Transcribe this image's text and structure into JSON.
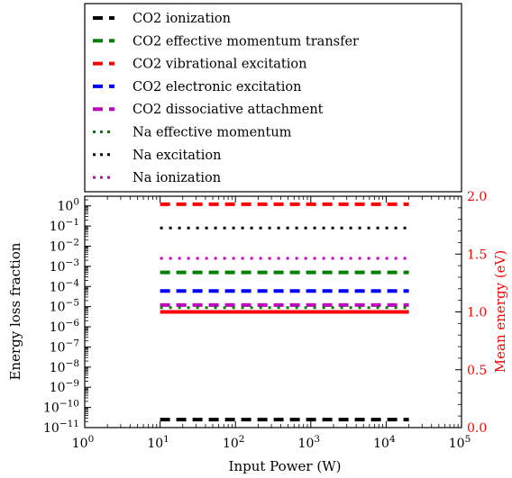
{
  "chart_data": {
    "type": "line",
    "xlabel": "Input Power (W)",
    "ylabel_left": "Energy loss fraction",
    "ylabel_right": "Mean energy (eV)",
    "x_scale": "log",
    "y_left_scale": "log",
    "xlim": [
      1,
      100000
    ],
    "ylim_left": [
      1e-11,
      3
    ],
    "ylim_right": [
      0.0,
      2.0
    ],
    "x_ticks": [
      "10^0",
      "10^1",
      "10^2",
      "10^3",
      "10^4",
      "10^5"
    ],
    "y_left_ticks": [
      "10^-11",
      "10^-10",
      "10^-9",
      "10^-8",
      "10^-7",
      "10^-6",
      "10^-5",
      "10^-4",
      "10^-3",
      "10^-2",
      "10^-1",
      "10^0"
    ],
    "y_right_ticks": [
      "0.0",
      "0.5",
      "1.0",
      "1.5",
      "2.0"
    ],
    "grid": false,
    "legend_position": "top",
    "x": [
      10,
      20000
    ],
    "series": [
      {
        "name": "CO2 ionization",
        "axis": "left",
        "style": "dashed",
        "color": "#000000",
        "values": [
          2.5e-11,
          2.5e-11
        ]
      },
      {
        "name": "CO2 effective momentum transfer",
        "axis": "left",
        "style": "dashed",
        "color": "#008000",
        "values": [
          0.0005,
          0.0005
        ]
      },
      {
        "name": "CO2 vibrational excitation",
        "axis": "left",
        "style": "dashed",
        "color": "#ff0000",
        "values": [
          1.2,
          1.2
        ]
      },
      {
        "name": "CO2 electronic excitation",
        "axis": "left",
        "style": "dashed",
        "color": "#0000ff",
        "values": [
          6e-05,
          6e-05
        ]
      },
      {
        "name": "CO2 dissociative attachment",
        "axis": "left",
        "style": "dashed",
        "color": "#bf00bf",
        "values": [
          1.2e-05,
          1.2e-05
        ]
      },
      {
        "name": "Na effective momentum",
        "axis": "left",
        "style": "dotted",
        "color": "#008000",
        "values": [
          9e-06,
          9e-06
        ]
      },
      {
        "name": "Na excitation",
        "axis": "left",
        "style": "dotted",
        "color": "#000000",
        "values": [
          0.08,
          0.08
        ]
      },
      {
        "name": "Na ionization",
        "axis": "left",
        "style": "dotted",
        "color": "#bf00bf",
        "values": [
          0.0025,
          0.0025
        ]
      },
      {
        "axis": "right",
        "style": "solid",
        "color": "#ff0000",
        "values": [
          1.0,
          1.0
        ]
      }
    ]
  }
}
